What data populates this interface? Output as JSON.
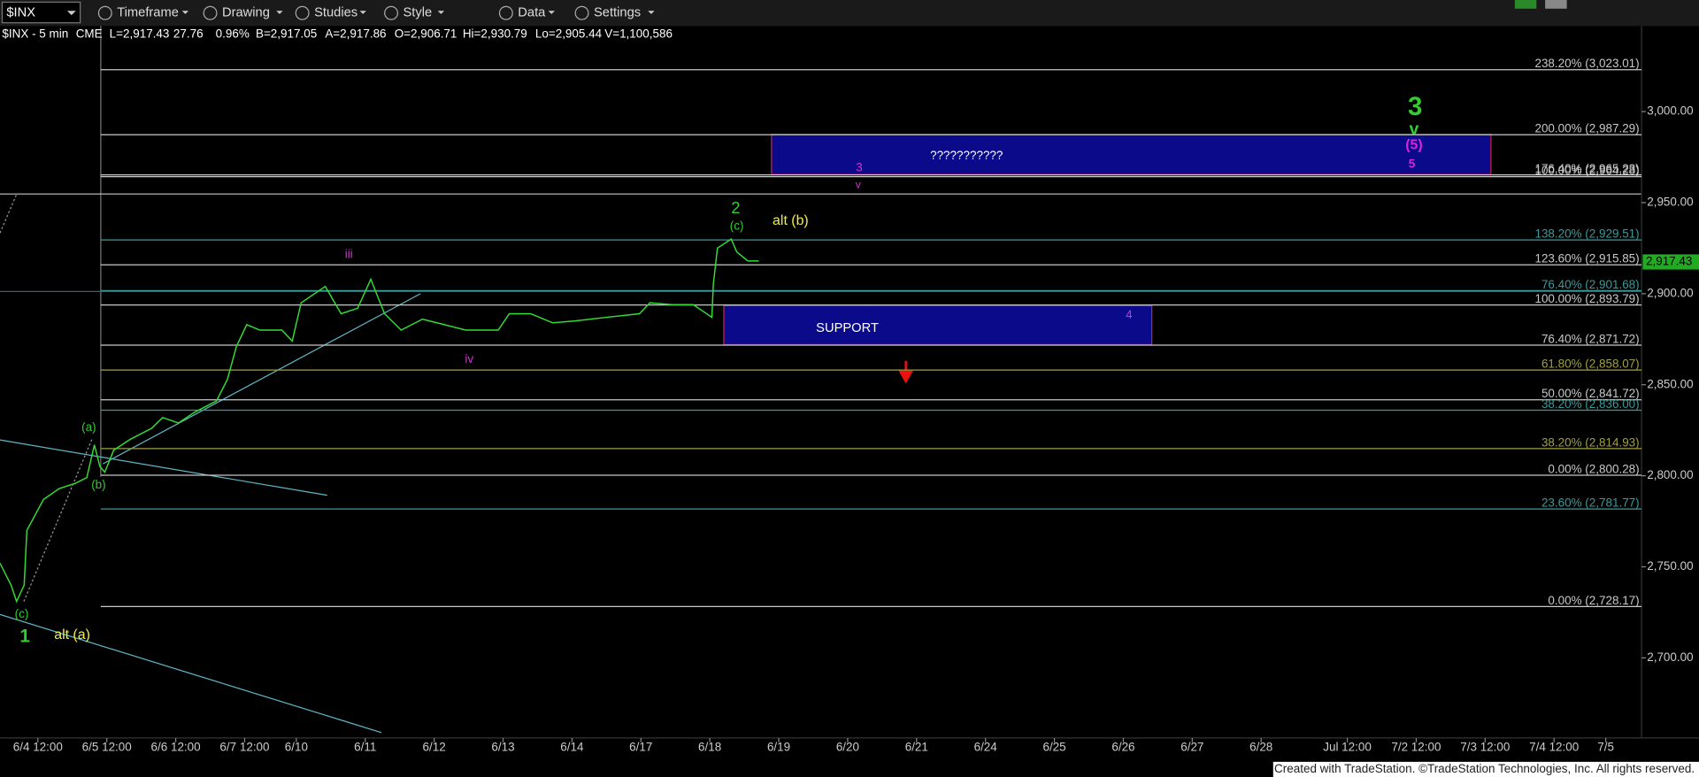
{
  "toolbar": {
    "symbol": "$INX",
    "items": [
      "Timeframe",
      "Drawing",
      "Studies",
      "Style",
      "Data",
      "Settings"
    ]
  },
  "quote": [
    "$INX - 5 min",
    "CME",
    "L=2,917.43",
    "27.76",
    "0.96%",
    "B=2,917.05",
    "A=2,917.86",
    "O=2,906.71",
    "Hi=2,930.79",
    "Lo=2,905.44",
    "V=1,100,586"
  ],
  "footer": "Created with TradeStation. ©TradeStation Technologies, Inc. All rights reserved.",
  "chart_data": {
    "type": "line",
    "xlim": [
      -0.55,
      23.27
    ],
    "ylim": [
      2656,
      3047
    ],
    "xticks": [
      {
        "value": 0,
        "label": "6/4 12:00"
      },
      {
        "value": 1,
        "label": "6/5 12:00"
      },
      {
        "value": 2,
        "label": "6/6 12:00"
      },
      {
        "value": 3,
        "label": "6/7 12:00"
      },
      {
        "value": 3.75,
        "label": "6/10"
      },
      {
        "value": 4.75,
        "label": "6/11"
      },
      {
        "value": 5.75,
        "label": "6/12"
      },
      {
        "value": 6.75,
        "label": "6/13"
      },
      {
        "value": 7.75,
        "label": "6/14"
      },
      {
        "value": 8.75,
        "label": "6/17"
      },
      {
        "value": 9.75,
        "label": "6/18"
      },
      {
        "value": 10.75,
        "label": "6/19"
      },
      {
        "value": 11.75,
        "label": "6/20"
      },
      {
        "value": 12.75,
        "label": "6/21"
      },
      {
        "value": 13.75,
        "label": "6/24"
      },
      {
        "value": 14.75,
        "label": "6/25"
      },
      {
        "value": 15.75,
        "label": "6/26"
      },
      {
        "value": 16.75,
        "label": "6/27"
      },
      {
        "value": 17.75,
        "label": "6/28"
      },
      {
        "value": 19,
        "label": "Jul 12:00"
      },
      {
        "value": 20,
        "label": "7/2 12:00"
      },
      {
        "value": 21,
        "label": "7/3 12:00"
      },
      {
        "value": 22,
        "label": "7/4 12:00"
      },
      {
        "value": 22.75,
        "label": "7/5"
      }
    ],
    "yticks": [
      {
        "value": 2700,
        "label": "2,700.00"
      },
      {
        "value": 2750,
        "label": "2,750.00"
      },
      {
        "value": 2800,
        "label": "2,800.00"
      },
      {
        "value": 2850,
        "label": "2,850.00"
      },
      {
        "value": 2900,
        "label": "2,900.00"
      },
      {
        "value": 2950,
        "label": "2,950.00"
      },
      {
        "value": 3000,
        "label": "3,000.00"
      }
    ],
    "series": [
      {
        "name": "$INX",
        "color": "#33dd33",
        "x": [
          -0.55,
          -0.39,
          -0.31,
          -0.2,
          -0.16,
          0.08,
          0.31,
          0.55,
          0.71,
          0.82,
          0.9,
          0.97,
          1.1,
          1.34,
          1.65,
          1.81,
          2.04,
          2.28,
          2.59,
          2.75,
          2.88,
          3.03,
          3.22,
          3.54,
          3.69,
          3.82,
          4.17,
          4.4,
          4.64,
          4.83,
          5.03,
          5.27,
          5.58,
          5.9,
          6.21,
          6.68,
          6.84,
          7.15,
          7.47,
          7.78,
          8.25,
          8.73,
          8.88,
          9.2,
          9.51,
          9.78,
          9.8,
          9.86,
          10.06,
          10.14,
          10.3,
          10.46
        ],
        "values": [
          2752,
          2740,
          2731,
          2740,
          2770,
          2787,
          2793,
          2796,
          2799,
          2817,
          2805,
          2802,
          2814,
          2820,
          2826,
          2832,
          2829,
          2835,
          2841,
          2853,
          2871,
          2883,
          2880,
          2880,
          2874,
          2895,
          2904,
          2889,
          2892,
          2908,
          2889,
          2880,
          2886,
          2883,
          2880,
          2880,
          2889,
          2889,
          2884,
          2885,
          2887,
          2889,
          2895,
          2894,
          2894,
          2887,
          2905,
          2925,
          2930,
          2923,
          2918,
          2918
        ]
      }
    ],
    "last_price": {
      "value": 2917.43,
      "label": "2,917.43"
    },
    "fib_levels": [
      {
        "label": "238.20% (3,023.01)",
        "value": 3023.01,
        "color": "#c8c8c8"
      },
      {
        "label": "200.00% (2,987.29)",
        "value": 2987.29,
        "color": "#c8c8c8"
      },
      {
        "label": "176.40% (2,965.23)",
        "value": 2965.23,
        "color": "#c8c8c8"
      },
      {
        "label": "100.00% (2,964.28)",
        "value": 2964.28,
        "color": "#c8c8c8"
      },
      {
        "label": "138.20% (2,929.51)",
        "value": 2929.51,
        "color": "#3a9a9a"
      },
      {
        "label": "123.60% (2,915.85)",
        "value": 2915.85,
        "color": "#c8c8c8"
      },
      {
        "label": "76.40% (2,901.68)",
        "value": 2901.68,
        "color": "#3a9a9a"
      },
      {
        "label": "100.00% (2,893.79)",
        "value": 2893.79,
        "color": "#c8c8c8"
      },
      {
        "label": "76.40% (2,871.72)",
        "value": 2871.72,
        "color": "#c8c8c8"
      },
      {
        "label": "61.80% (2,858.07)",
        "value": 2858.07,
        "color": "#a0a040"
      },
      {
        "label": "50.00% (2,841.72)",
        "value": 2841.72,
        "color": "#c8c8c8"
      },
      {
        "label": "38.20% (2,836.00)",
        "value": 2836.0,
        "color": "#3a9a9a"
      },
      {
        "label": "38.20% (2,814.93)",
        "value": 2814.93,
        "color": "#a0a040"
      },
      {
        "label": "0.00% (2,800.28)",
        "value": 2800.28,
        "color": "#c8c8c8"
      },
      {
        "label": "23.60% (2,781.77)",
        "value": 2781.77,
        "color": "#3a9a9a"
      },
      {
        "label": "0.00% (2,728.17)",
        "value": 2728.17,
        "color": "#c8c8c8"
      }
    ],
    "annotations": [
      {
        "text": "3",
        "color": "#33cc33"
      },
      {
        "text": "v",
        "color": "#33cc33"
      },
      {
        "text": "(5)",
        "color": "#dd22dd"
      },
      {
        "text": "5",
        "color": "#dd22dd"
      },
      {
        "text": "???????????",
        "color": "#ffffff"
      },
      {
        "text": "3",
        "color": "#cc33cc"
      },
      {
        "text": "v",
        "color": "#cc33cc"
      },
      {
        "text": "2",
        "color": "#33cc33"
      },
      {
        "text": "(c)",
        "color": "#33cc33"
      },
      {
        "text": "alt (b)",
        "color": "#eeee44"
      },
      {
        "text": "iii",
        "color": "#cc33cc"
      },
      {
        "text": "SUPPORT",
        "color": "#ffffff"
      },
      {
        "text": "4",
        "color": "#cc33cc"
      },
      {
        "text": "iv",
        "color": "#cc33cc"
      },
      {
        "text": "(a)",
        "color": "#33cc33"
      },
      {
        "text": "(b)",
        "color": "#33cc33"
      },
      {
        "text": "(c)",
        "color": "#33cc33"
      },
      {
        "text": "1",
        "color": "#33cc33"
      },
      {
        "text": "alt (a)",
        "color": "#eeee44"
      }
    ]
  }
}
